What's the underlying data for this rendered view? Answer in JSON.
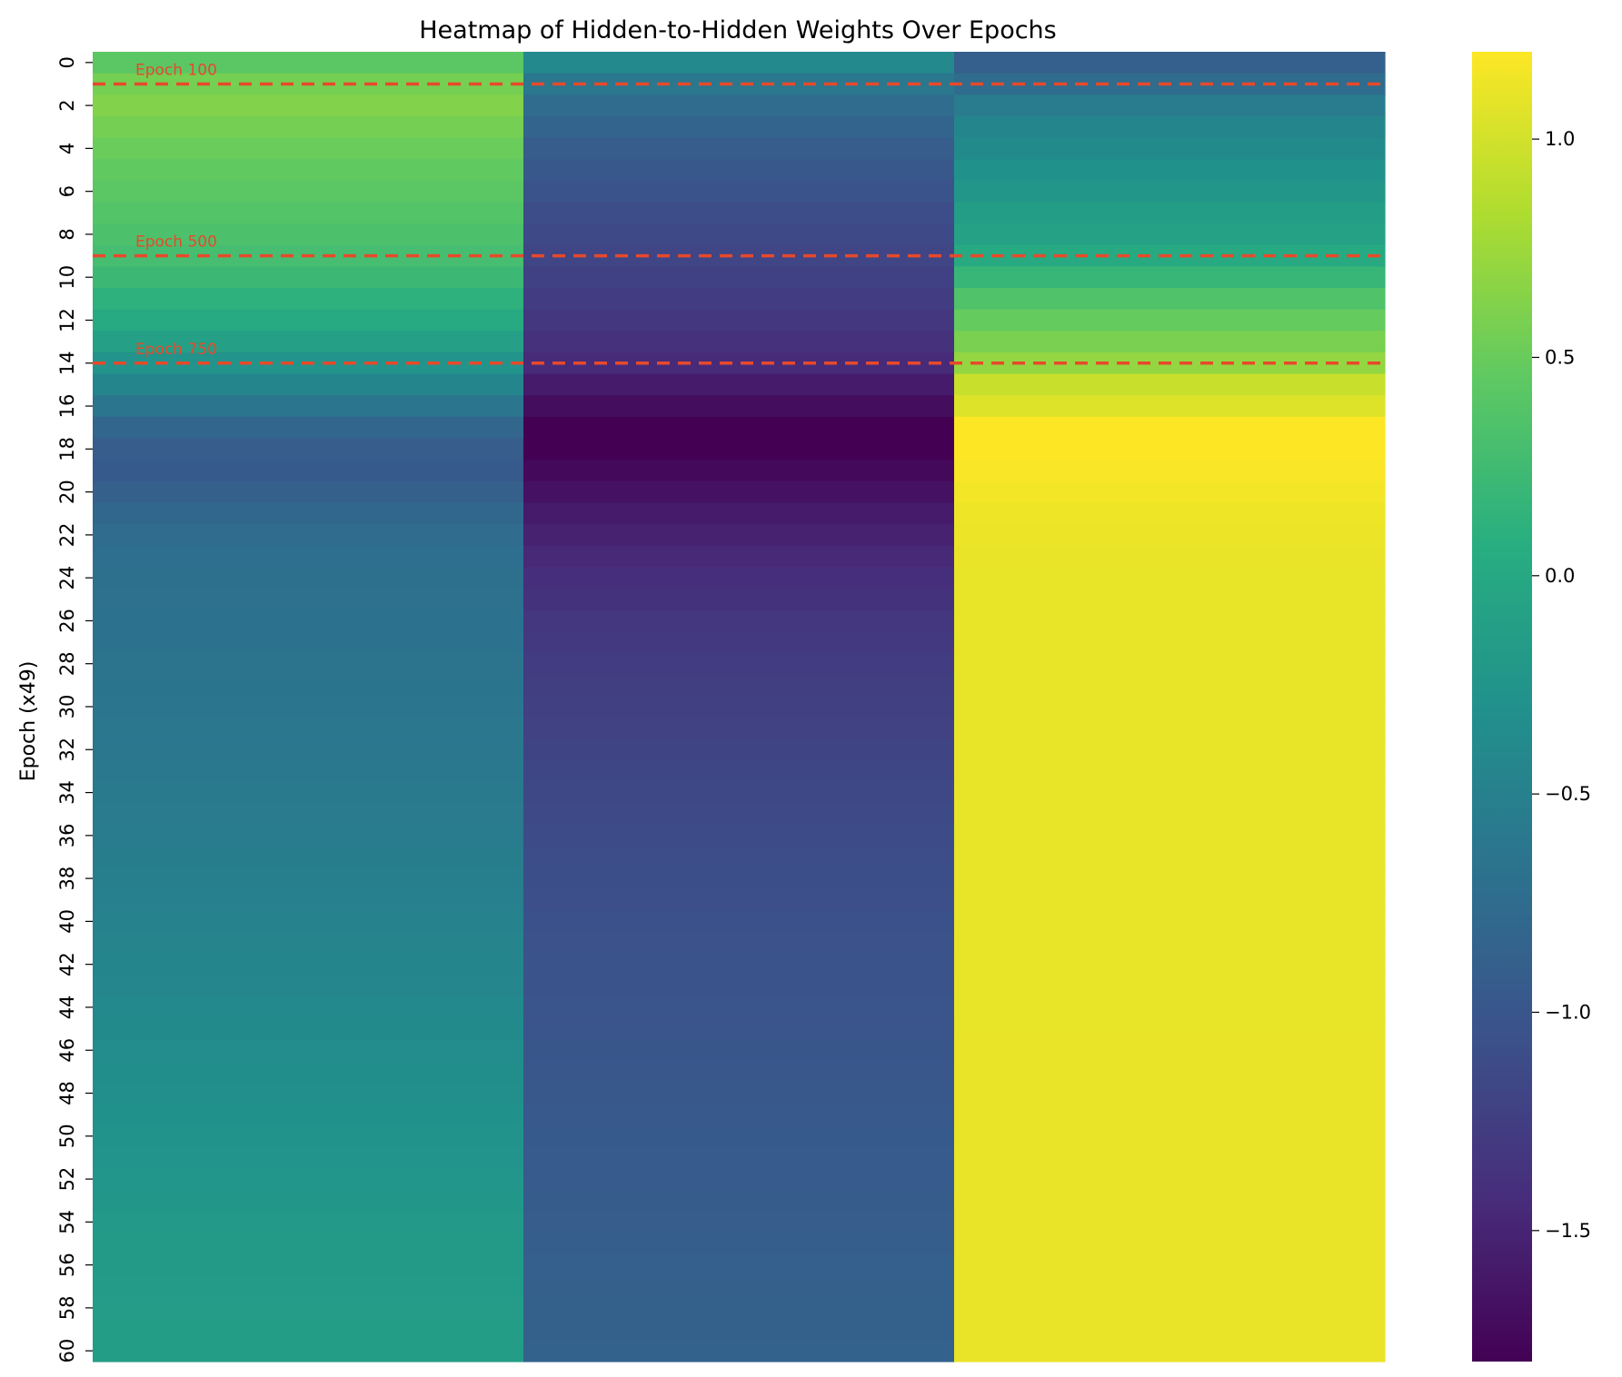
{
  "chart_data": {
    "type": "heatmap",
    "title": "Heatmap of Hidden-to-Hidden Weights Over Epochs",
    "ylabel": "Epoch (x49)",
    "xlabel": "",
    "colormap": "viridis",
    "rows": 61,
    "columns": 3,
    "ytick_labels": [
      "0",
      "2",
      "4",
      "6",
      "8",
      "10",
      "12",
      "14",
      "16",
      "18",
      "20",
      "22",
      "24",
      "26",
      "28",
      "30",
      "32",
      "34",
      "36",
      "38",
      "40",
      "42",
      "44",
      "46",
      "48",
      "50",
      "52",
      "54",
      "56",
      "58",
      "60"
    ],
    "series": [
      {
        "values": [
          0.42,
          0.56,
          0.62,
          0.56,
          0.5,
          0.46,
          0.42,
          0.38,
          0.33,
          0.28,
          0.22,
          0.12,
          0.02,
          -0.1,
          -0.26,
          -0.45,
          -0.64,
          -0.82,
          -0.92,
          -0.96,
          -0.89,
          -0.8,
          -0.75,
          -0.72,
          -0.7,
          -0.69,
          -0.68,
          -0.67,
          -0.66,
          -0.65,
          -0.64,
          -0.62,
          -0.61,
          -0.6,
          -0.58,
          -0.57,
          -0.55,
          -0.54,
          -0.52,
          -0.5,
          -0.48,
          -0.46,
          -0.44,
          -0.42,
          -0.4,
          -0.38,
          -0.36,
          -0.34,
          -0.32,
          -0.3,
          -0.28,
          -0.26,
          -0.24,
          -0.22,
          -0.2,
          -0.19,
          -0.18,
          -0.17,
          -0.16,
          -0.15,
          -0.14
        ]
      },
      {
        "values": [
          -0.4,
          -0.62,
          -0.74,
          -0.84,
          -0.92,
          -0.98,
          -1.04,
          -1.1,
          -1.14,
          -1.18,
          -1.22,
          -1.27,
          -1.32,
          -1.38,
          -1.44,
          -1.58,
          -1.7,
          -1.8,
          -1.8,
          -1.73,
          -1.66,
          -1.58,
          -1.52,
          -1.46,
          -1.41,
          -1.37,
          -1.33,
          -1.3,
          -1.27,
          -1.25,
          -1.23,
          -1.21,
          -1.19,
          -1.17,
          -1.15,
          -1.13,
          -1.11,
          -1.1,
          -1.09,
          -1.08,
          -1.06,
          -1.05,
          -1.04,
          -1.03,
          -1.02,
          -1.01,
          -1.0,
          -0.99,
          -0.98,
          -0.97,
          -0.96,
          -0.95,
          -0.94,
          -0.93,
          -0.92,
          -0.91,
          -0.9,
          -0.89,
          -0.88,
          -0.87,
          -0.86
        ]
      },
      {
        "values": [
          -0.9,
          -0.75,
          -0.55,
          -0.45,
          -0.38,
          -0.3,
          -0.22,
          -0.15,
          -0.08,
          0.02,
          0.18,
          0.35,
          0.48,
          0.58,
          0.7,
          0.95,
          1.05,
          1.2,
          1.2,
          1.18,
          1.15,
          1.13,
          1.12,
          1.11,
          1.1,
          1.1,
          1.1,
          1.1,
          1.1,
          1.1,
          1.1,
          1.1,
          1.1,
          1.1,
          1.1,
          1.1,
          1.1,
          1.1,
          1.1,
          1.1,
          1.1,
          1.1,
          1.1,
          1.1,
          1.1,
          1.1,
          1.11,
          1.11,
          1.11,
          1.11,
          1.11,
          1.11,
          1.11,
          1.11,
          1.11,
          1.11,
          1.11,
          1.11,
          1.11,
          1.11,
          1.11
        ]
      }
    ],
    "vmin": -1.8,
    "vmax": 1.2,
    "colorbar_ticks": [
      1.0,
      0.5,
      0.0,
      -0.5,
      -1.0,
      -1.5
    ],
    "colorbar_tick_labels": [
      "1.0",
      "0.5",
      "0.0",
      "−0.5",
      "−1.0",
      "−1.5"
    ],
    "annotations": [
      {
        "text": "Epoch 100",
        "row": 1.5
      },
      {
        "text": "Epoch 500",
        "row": 9.5
      },
      {
        "text": "Epoch 750",
        "row": 14.5
      }
    ],
    "annotation_color": "#e8492a",
    "grid": false,
    "legend": "colorbar-right"
  }
}
